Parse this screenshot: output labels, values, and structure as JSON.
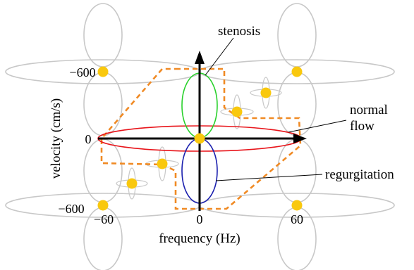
{
  "labels": {
    "stenosis": "stenosis",
    "normal_flow_line1": "normal",
    "normal_flow_line2": "flow",
    "regurgitation": "regurgitation",
    "y_axis": "velocity (cm/s)",
    "x_axis": "frequency (Hz)",
    "y_tick_top": "−600",
    "y_tick_zero": "0",
    "y_tick_bottom": "−600",
    "x_tick_left": "−60",
    "x_tick_zero": "0",
    "x_tick_right": "60"
  },
  "colors": {
    "background": "#ffffff",
    "axes": "#000000",
    "normal_flow": "#e8141a",
    "stenosis": "#29d12c",
    "regurgitation": "#1a1fae",
    "aliases": "#c8c8c8",
    "markers": "#f9c80e",
    "boundary": "#f08a24",
    "leader_lines": "#000000"
  }
}
